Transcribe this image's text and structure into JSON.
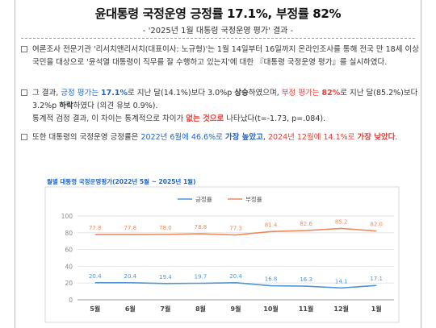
{
  "header": {
    "title": "윤대통령 국정운영 긍정률 17.1%, 부정률 82%",
    "subtitle": "- '2025년 1월 대통령 국정운영 평가' 결과 -"
  },
  "paragraphs": {
    "p1": {
      "t1": "여론조사 전문기관 '리서치앤리서치(대표이사: 노규형)'는 1월 14일부터 16일까지 온라인조사를 통해 전국 만 18세 이상 국민을 대상으로 '윤석열 대통령이 직무를 잘 수행하고 있는지'에 대한 『대통령 국정운영 평가』를 실시하였다."
    },
    "p2": {
      "s1": "그 결과, ",
      "s2": "긍정 평가는 ",
      "s3": "17.1%",
      "s4": "로 지난 달(14.1%)보다 3.0%p ",
      "s5": "상승",
      "s6": "하였으며, ",
      "s7": "부정 평가는 ",
      "s8": "82%",
      "s9": "로 지난 달(85.2%)보다 3.2%p ",
      "s10": "하락",
      "s11": "하였다 (의견 유보 0.9%).",
      "s12": "통계적 검정 결과, 이 차이는 통계적으로 차이가 ",
      "s13": "없는 것으로",
      "s14": " 나타났다(t=-1.73, p=.084)."
    },
    "p3": {
      "s1": "또한 대통령의 국정운영 긍정률은 ",
      "s2": "2022년 6월에 46.6%로 ",
      "s3": "가장 높았고",
      "s4": ", ",
      "s5": "2024년 12월에 14.1%로 ",
      "s6": "가장 낮았다",
      "s7": "."
    }
  },
  "chart_data": {
    "type": "line",
    "title": "월별 대통령 국정운영평가(2022년 5월 ~ 2025년 1월)",
    "categories": [
      "5월",
      "6월",
      "7월",
      "8월",
      "9월",
      "10월",
      "11월",
      "12월",
      "1월"
    ],
    "ylim": [
      0,
      100
    ],
    "yticks": [
      "0",
      "20",
      "40",
      "60",
      "80",
      "100"
    ],
    "grid": true,
    "legend_position": "top-center",
    "series": [
      {
        "name": "긍정률",
        "color": "#4f95d4",
        "values": [
          20.4,
          20.4,
          19.4,
          19.7,
          20.4,
          16.8,
          16.3,
          14.1,
          17.1
        ],
        "labels": [
          "20.4",
          "20.4",
          "19.4",
          "19.7",
          "20.4",
          "16.8",
          "16.3",
          "14.1",
          "17.1"
        ]
      },
      {
        "name": "부정률",
        "color": "#ee8a5e",
        "values": [
          77.8,
          77.8,
          78.0,
          78.8,
          77.3,
          81.4,
          82.6,
          85.2,
          82.0
        ],
        "labels": [
          "77.8",
          "77.8",
          "78.0",
          "78.8",
          "77.3",
          "81.4",
          "82.6",
          "85.2",
          "82.0"
        ]
      }
    ]
  }
}
